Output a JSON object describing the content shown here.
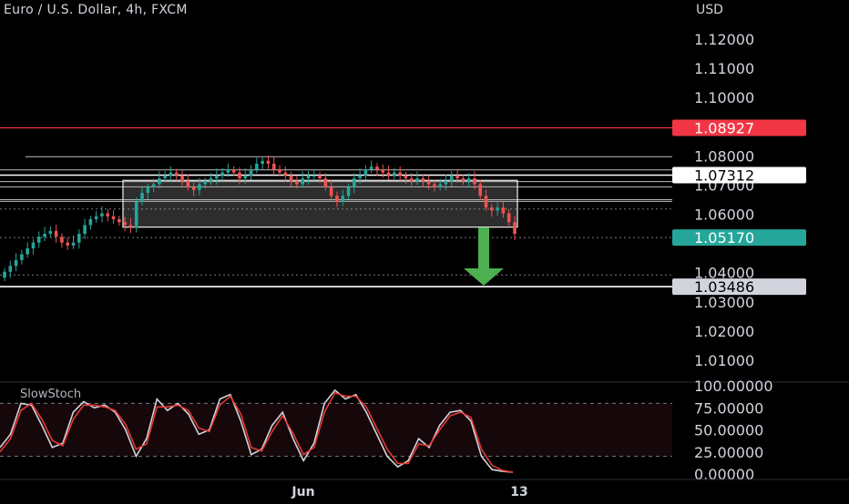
{
  "header": {
    "title": "Euro / U.S. Dollar, 4h, FXCM",
    "currency": "USD"
  },
  "colors": {
    "background": "#000000",
    "up": "#26a69a",
    "down": "#ef5350",
    "resistance_line": "#f23645",
    "support_line": "#ffffff",
    "arrow": "#4caf50",
    "stoch_k": "#d1d4dc",
    "stoch_d": "#e53935"
  },
  "chart_data": [
    {
      "type": "candlestick",
      "title": "Euro / U.S. Dollar, 4h, FXCM",
      "ylabel": "USD",
      "y_ticks": [
        "1.12000",
        "1.11000",
        "1.10000",
        "1.08000",
        "1.07000",
        "1.06000",
        "1.04000",
        "1.03000",
        "1.02000",
        "1.01000"
      ],
      "ylim": [
        1.0,
        1.125
      ],
      "x_ticks": [
        "Jun",
        "13"
      ],
      "close_series_approx": [
        1.04,
        1.042,
        1.044,
        1.046,
        1.048,
        1.05,
        1.052,
        1.053,
        1.054,
        1.052,
        1.05,
        1.049,
        1.05,
        1.053,
        1.056,
        1.058,
        1.059,
        1.06,
        1.059,
        1.058,
        1.057,
        1.056,
        1.055,
        1.064,
        1.067,
        1.069,
        1.07,
        1.072,
        1.073,
        1.074,
        1.073,
        1.071,
        1.069,
        1.068,
        1.07,
        1.071,
        1.072,
        1.073,
        1.074,
        1.075,
        1.074,
        1.072,
        1.073,
        1.075,
        1.077,
        1.078,
        1.077,
        1.075,
        1.074,
        1.073,
        1.071,
        1.07,
        1.072,
        1.073,
        1.073,
        1.072,
        1.069,
        1.066,
        1.064,
        1.066,
        1.069,
        1.072,
        1.073,
        1.075,
        1.076,
        1.075,
        1.074,
        1.073,
        1.074,
        1.073,
        1.072,
        1.071,
        1.072,
        1.071,
        1.07,
        1.069,
        1.07,
        1.071,
        1.073,
        1.072,
        1.071,
        1.072,
        1.07,
        1.066,
        1.062,
        1.061,
        1.062,
        1.06,
        1.057,
        1.053
      ],
      "price_labels": [
        {
          "value": "1.08927",
          "role": "resistance"
        },
        {
          "value": "1.07312",
          "role": "range-top"
        },
        {
          "value": "1.05170",
          "role": "current"
        },
        {
          "value": "1.03486",
          "role": "support"
        }
      ],
      "annotations": {
        "range_box": {
          "top": 1.0713,
          "bottom": 1.0553
        },
        "horizontal_lines": [
          1.0893,
          1.0794,
          1.0749,
          1.0731,
          1.0709,
          1.0691,
          1.0647,
          1.0641,
          1.0615,
          1.0517,
          1.0389,
          1.0349
        ],
        "arrow": "down"
      }
    },
    {
      "type": "line",
      "title": "SlowStoch",
      "y_ticks": [
        "100.00000",
        "75.00000",
        "50.00000",
        "25.00000",
        "0.00000"
      ],
      "ylim": [
        0,
        100
      ],
      "bands": [
        80,
        20
      ],
      "series": [
        {
          "values": [
            30,
            45,
            80,
            78,
            55,
            30,
            35,
            70,
            82,
            75,
            78,
            70,
            50,
            20,
            40,
            85,
            72,
            80,
            68,
            45,
            50,
            85,
            90,
            60,
            22,
            28,
            55,
            70,
            40,
            15,
            35,
            80,
            95,
            85,
            90,
            70,
            45,
            20,
            8,
            15,
            40,
            30,
            55,
            70,
            72,
            60,
            20,
            5,
            3,
            2
          ]
        },
        {
          "values": [
            25,
            40,
            72,
            80,
            62,
            38,
            32,
            62,
            78,
            78,
            76,
            72,
            56,
            28,
            34,
            76,
            76,
            78,
            72,
            52,
            48,
            78,
            88,
            68,
            30,
            26,
            48,
            66,
            46,
            22,
            30,
            70,
            92,
            88,
            88,
            76,
            52,
            28,
            12,
            12,
            34,
            32,
            50,
            66,
            70,
            64,
            28,
            10,
            4,
            2
          ]
        }
      ]
    }
  ]
}
